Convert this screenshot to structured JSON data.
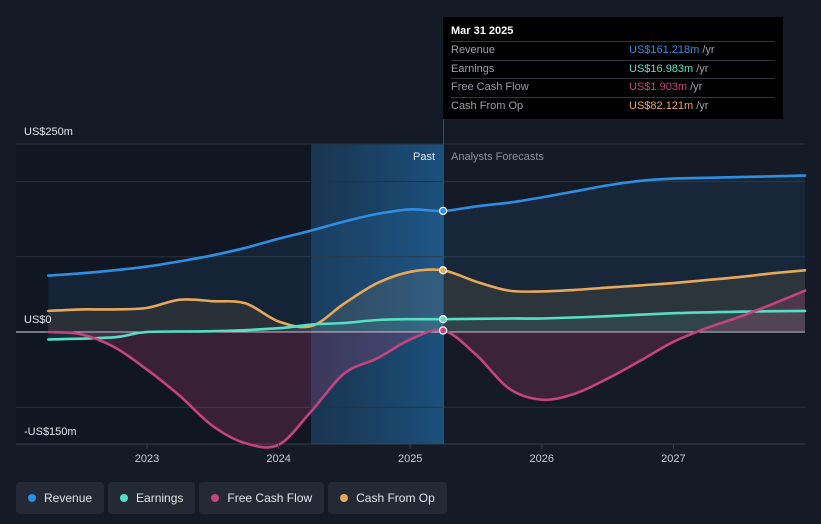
{
  "chart_data": {
    "type": "line",
    "x_range": [
      2022.1,
      2028.0
    ],
    "y_range": [
      -150,
      250
    ],
    "past_forecast_split": 2025.25,
    "y_labels": {
      "top": "US$250m",
      "zero": "US$0",
      "bottom": "-US$150m"
    },
    "x_ticks": [
      {
        "value": 2023.0,
        "label": "2023"
      },
      {
        "value": 2024.0,
        "label": "2024"
      },
      {
        "value": 2025.0,
        "label": "2025"
      },
      {
        "value": 2026.0,
        "label": "2026"
      },
      {
        "value": 2027.0,
        "label": "2027"
      }
    ],
    "section_labels": {
      "past": "Past",
      "forecast": "Analysts Forecasts"
    },
    "series": [
      {
        "name": "Revenue",
        "color": "#2d8fe3",
        "x": [
          2022.25,
          2022.5,
          2022.75,
          2023.0,
          2023.25,
          2023.5,
          2023.75,
          2024.0,
          2024.25,
          2024.5,
          2024.75,
          2025.0,
          2025.25,
          2025.5,
          2025.75,
          2026.0,
          2026.25,
          2026.5,
          2026.75,
          2027.0,
          2027.25,
          2027.5,
          2027.75,
          2028.0
        ],
        "values": [
          75,
          78,
          82,
          87,
          94,
          102,
          112,
          124,
          135,
          147,
          157,
          163,
          161,
          167,
          172,
          179,
          187,
          195,
          201,
          204,
          205,
          206,
          207,
          208
        ]
      },
      {
        "name": "Earnings",
        "color": "#55e0c6",
        "x": [
          2022.25,
          2022.75,
          2023.0,
          2023.5,
          2024.0,
          2024.25,
          2024.5,
          2024.75,
          2025.0,
          2025.25,
          2025.75,
          2026.0,
          2026.5,
          2027.0,
          2027.5,
          2028.0
        ],
        "values": [
          -10,
          -7,
          0,
          1,
          5,
          10,
          12,
          16,
          17,
          17,
          18,
          18,
          21,
          25,
          27,
          28
        ]
      },
      {
        "name": "Free Cash Flow",
        "color": "#c5437f",
        "x": [
          2022.25,
          2022.5,
          2022.75,
          2023.0,
          2023.25,
          2023.5,
          2023.75,
          2024.0,
          2024.25,
          2024.5,
          2024.75,
          2025.0,
          2025.25,
          2025.5,
          2025.75,
          2026.0,
          2026.25,
          2026.5,
          2026.75,
          2027.0,
          2027.25,
          2027.5,
          2027.75,
          2028.0
        ],
        "values": [
          0,
          -3,
          -20,
          -50,
          -85,
          -125,
          -148,
          -150,
          -105,
          -55,
          -35,
          -10,
          2,
          -30,
          -75,
          -90,
          -82,
          -62,
          -38,
          -13,
          5,
          20,
          37,
          55
        ]
      },
      {
        "name": "Cash From Op",
        "color": "#e8a85a",
        "x": [
          2022.25,
          2022.5,
          2022.75,
          2023.0,
          2023.25,
          2023.5,
          2023.75,
          2024.0,
          2024.25,
          2024.5,
          2024.75,
          2025.0,
          2025.25,
          2025.5,
          2025.75,
          2026.0,
          2026.25,
          2026.5,
          2026.75,
          2027.0,
          2027.25,
          2027.5,
          2027.75,
          2028.0
        ],
        "values": [
          28,
          30,
          30,
          32,
          43,
          41,
          38,
          14,
          8,
          38,
          65,
          80,
          82,
          67,
          55,
          54,
          56,
          59,
          62,
          65,
          69,
          73,
          78,
          82
        ]
      }
    ]
  },
  "tooltip": {
    "date": "Mar 31 2025",
    "rows": [
      {
        "label": "Revenue",
        "value": "US$161.218m",
        "unit": "/yr",
        "color": "#2d8fe3"
      },
      {
        "label": "Earnings",
        "value": "US$16.983m",
        "unit": "/yr",
        "color": "#55e0c6"
      },
      {
        "label": "Free Cash Flow",
        "value": "US$1.903m",
        "unit": "/yr",
        "color": "#c5437f"
      },
      {
        "label": "Cash From Op",
        "value": "US$82.121m",
        "unit": "/yr",
        "color": "#e8a85a"
      }
    ]
  },
  "legend": [
    {
      "label": "Revenue",
      "color": "#2d8fe3"
    },
    {
      "label": "Earnings",
      "color": "#55e0c6"
    },
    {
      "label": "Free Cash Flow",
      "color": "#c5437f"
    },
    {
      "label": "Cash From Op",
      "color": "#e8a85a"
    }
  ]
}
